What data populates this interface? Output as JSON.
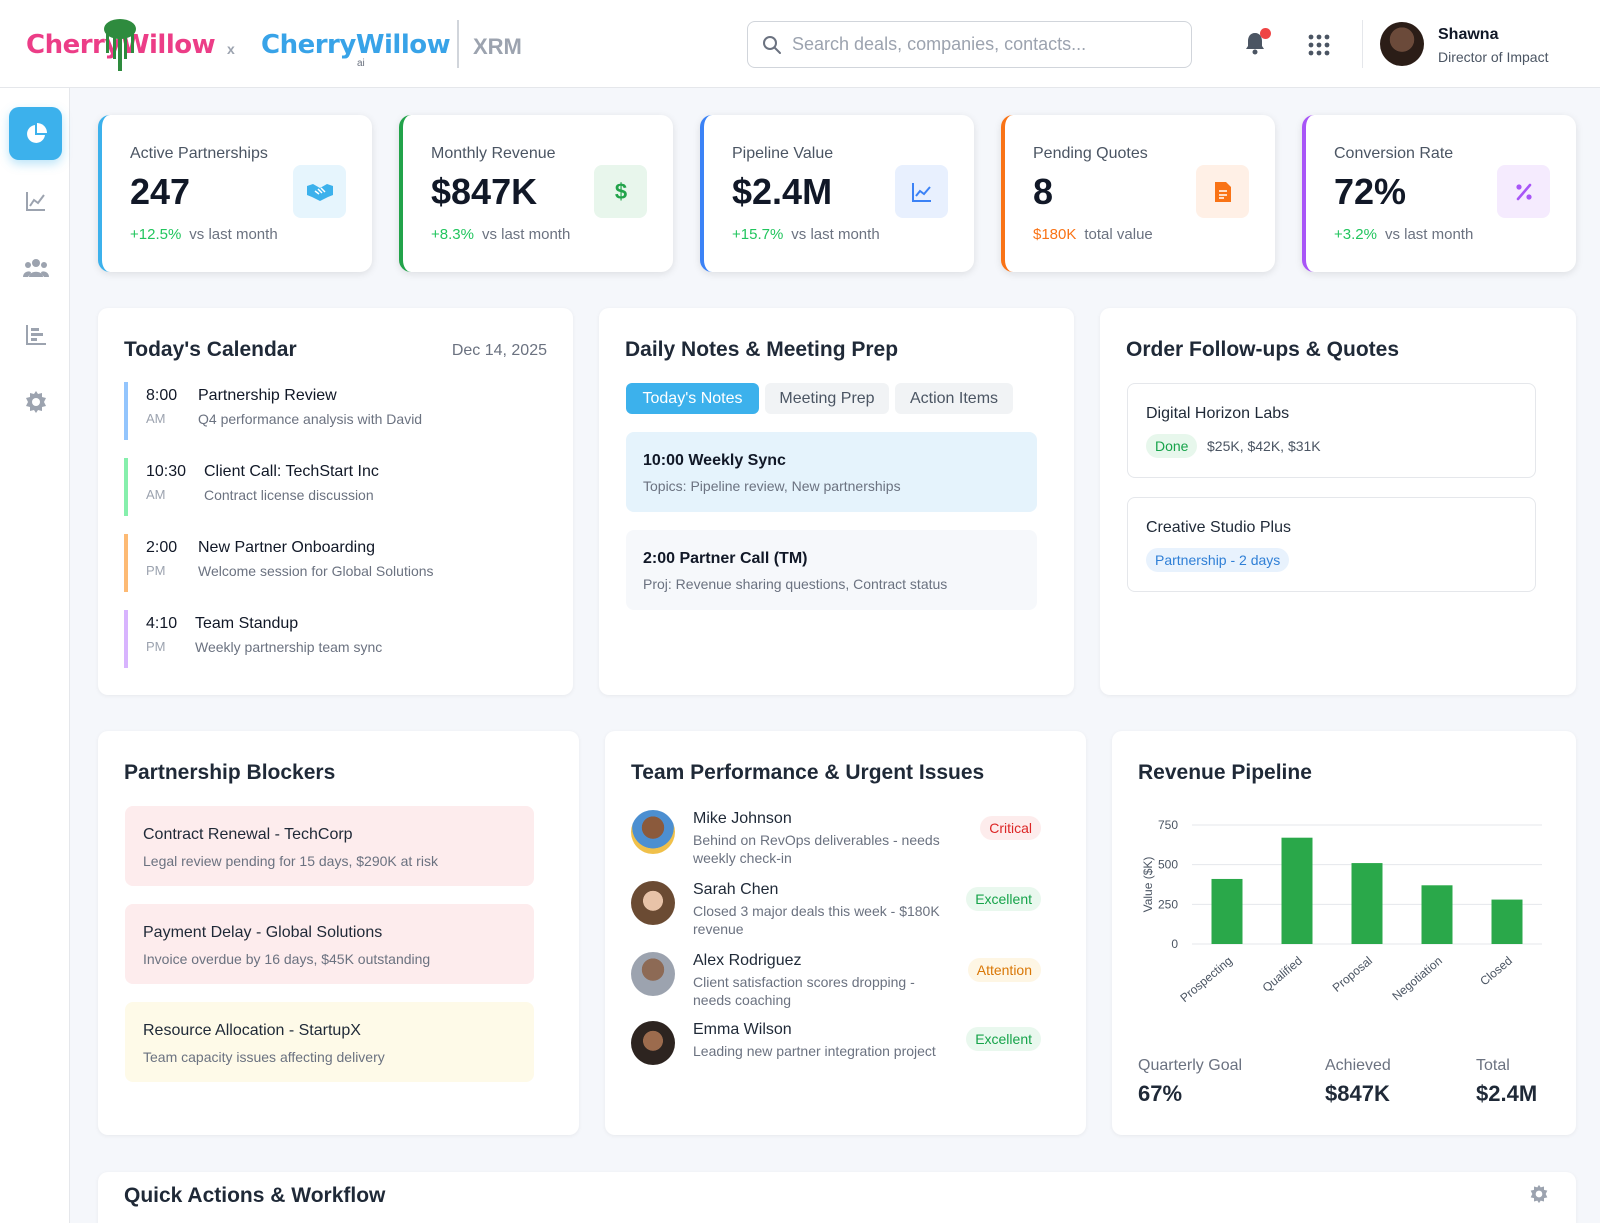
{
  "header": {
    "logo_primary": "CherryWillow",
    "logo_separator": "x",
    "logo_secondary": "CherryWillow",
    "logo_secondary_suffix": "ai",
    "product": "XRM",
    "search_placeholder": "Search deals, companies, contacts...",
    "user": {
      "name": "Shawna",
      "role": "Director of Impact"
    }
  },
  "sidebar": [
    "pie-chart",
    "line-chart",
    "users",
    "bar-chart",
    "settings"
  ],
  "kpis": [
    {
      "label": "Active Partnerships",
      "value": "247",
      "delta": "+12.5%",
      "delta_color": "#22c55e",
      "note": "vs last month",
      "accent": "#3cb1ec",
      "icon_bg": "#e6f5fd",
      "icon_color": "#3cb1ec"
    },
    {
      "label": "Monthly Revenue",
      "value": "$847K",
      "delta": "+8.3%",
      "delta_color": "#22c55e",
      "note": "vs last month",
      "accent": "#22a34a",
      "icon_bg": "#e8f6ec",
      "icon_color": "#22a34a"
    },
    {
      "label": "Pipeline Value",
      "value": "$2.4M",
      "delta": "+15.7%",
      "delta_color": "#22c55e",
      "note": "vs last month",
      "accent": "#3b82f6",
      "icon_bg": "#e8f0fe",
      "icon_color": "#3b82f6"
    },
    {
      "label": "Pending Quotes",
      "value": "8",
      "delta": "$180K",
      "delta_color": "#f97316",
      "note": "total value",
      "accent": "#f97316",
      "icon_bg": "#fff0e6",
      "icon_color": "#f97316"
    },
    {
      "label": "Conversion Rate",
      "value": "72%",
      "delta": "+3.2%",
      "delta_color": "#22c55e",
      "note": "vs last month",
      "accent": "#a855f7",
      "icon_bg": "#f5ebfe",
      "icon_color": "#a855f7"
    }
  ],
  "calendar": {
    "title": "Today's Calendar",
    "date": "Dec 14, 2025",
    "events": [
      {
        "time": "8:00",
        "ampm": "AM",
        "title": "Partnership Review",
        "desc": "Q4 performance analysis with David",
        "color": "#93c5fd"
      },
      {
        "time": "10:30",
        "ampm": "AM",
        "title": "Client Call: TechStart Inc",
        "desc": "Contract license discussion",
        "color": "#86efac"
      },
      {
        "time": "2:00",
        "ampm": "PM",
        "title": "New Partner Onboarding",
        "desc": "Welcome session for Global Solutions",
        "color": "#fdba74"
      },
      {
        "time": "4:10",
        "ampm": "PM",
        "title": "Team Standup",
        "desc": "Weekly partnership team sync",
        "color": "#d8b4fe"
      }
    ]
  },
  "notes": {
    "title": "Daily Notes & Meeting Prep",
    "tabs": [
      "Today's Notes",
      "Meeting Prep",
      "Action Items"
    ],
    "items": [
      {
        "title": "10:00 Weekly Sync",
        "desc": "Topics: Pipeline review, New partnerships"
      },
      {
        "title": "2:00 Partner Call (TM)",
        "desc": "Proj: Revenue sharing questions, Contract status"
      }
    ]
  },
  "orders": {
    "title": "Order Follow-ups & Quotes",
    "items": [
      {
        "company": "Digital Horizon Labs",
        "badge": "Done",
        "values": "$25K, $42K, $31K"
      },
      {
        "company": "Creative Studio Plus",
        "badge": "Partnership - 2 days",
        "values": ""
      }
    ]
  },
  "blockers": {
    "title": "Partnership Blockers",
    "items": [
      {
        "title": "Contract Renewal - TechCorp",
        "desc": "Legal review pending for 15 days, $290K at risk",
        "bg": "#fdeced"
      },
      {
        "title": "Payment Delay - Global Solutions",
        "desc": "Invoice overdue by 16 days, $45K outstanding",
        "bg": "#fdeced"
      },
      {
        "title": "Resource Allocation - StartupX",
        "desc": "Team capacity issues affecting delivery",
        "bg": "#fefae8"
      }
    ]
  },
  "team": {
    "title": "Team Performance & Urgent Issues",
    "members": [
      {
        "name": "Mike Johnson",
        "desc": "Behind on RevOps deliverables - needs weekly check-in",
        "status": "Critical",
        "status_color": "#dc2626",
        "status_bg": "#fdecec"
      },
      {
        "name": "Sarah Chen",
        "desc": "Closed 3 major deals this week - $180K revenue",
        "status": "Excellent",
        "status_color": "#16a34a",
        "status_bg": "#e9f8ee"
      },
      {
        "name": "Alex Rodriguez",
        "desc": "Client satisfaction scores dropping - needs coaching",
        "status": "Attention",
        "status_color": "#d97706",
        "status_bg": "#fef6e4"
      },
      {
        "name": "Emma Wilson",
        "desc": "Leading new partner integration project",
        "status": "Excellent",
        "status_color": "#16a34a",
        "status_bg": "#e9f8ee"
      }
    ]
  },
  "pipeline": {
    "title": "Revenue Pipeline",
    "stats": [
      {
        "label": "Quarterly Goal",
        "value": "67%"
      },
      {
        "label": "Achieved",
        "value": "$847K"
      },
      {
        "label": "Total",
        "value": "$2.4M"
      }
    ]
  },
  "chart_data": {
    "type": "bar",
    "title": "Revenue Pipeline",
    "categories": [
      "Prospecting",
      "Qualified",
      "Proposal",
      "Negotiation",
      "Closed"
    ],
    "values": [
      410,
      670,
      510,
      370,
      280
    ],
    "xlabel": "",
    "ylabel": "Value ($K)",
    "ylim": [
      0,
      750
    ],
    "yticks": [
      0,
      250,
      500,
      750
    ],
    "color": "#2aa84a"
  },
  "quick_actions": {
    "title": "Quick Actions & Workflow"
  }
}
